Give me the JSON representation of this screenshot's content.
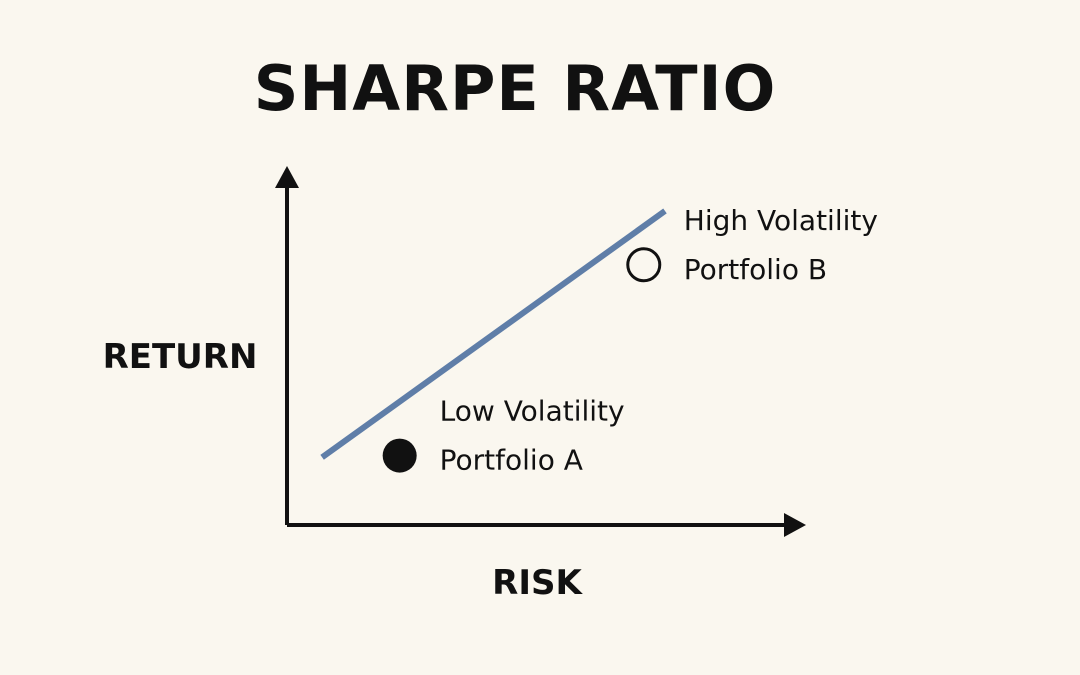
{
  "chart_data": {
    "type": "scatter",
    "title": "SHARPE RATIO",
    "xlabel": "RISK",
    "ylabel": "RETURN",
    "grid": false,
    "legend": "none",
    "line": {
      "color": "#5f7ea8",
      "start": [
        0.1,
        0.2
      ],
      "end": [
        1.0,
        0.9
      ]
    },
    "points": [
      {
        "x": 0.3,
        "y": 0.2,
        "label_line1": "Low Volatility",
        "label_line2": "Portfolio A",
        "filled": true
      },
      {
        "x": 0.95,
        "y": 0.75,
        "label_line1": "High Volatility",
        "label_line2": "Portfolio B",
        "filled": false
      }
    ],
    "colors": {
      "background": "#faf7ef",
      "text": "#111111",
      "axis": "#111111",
      "line": "#5f7ea8",
      "point_fill": "#111111",
      "point_outline": "#111111"
    }
  }
}
